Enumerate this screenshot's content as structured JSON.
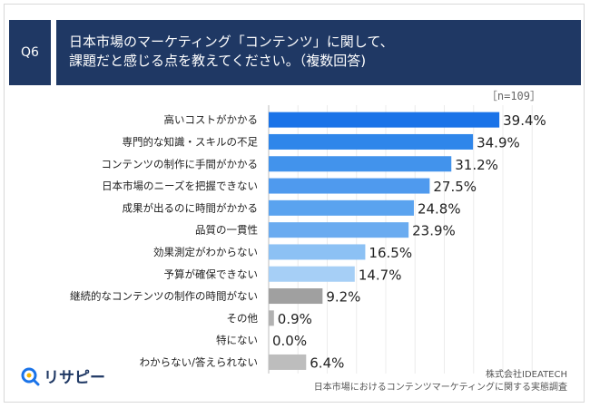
{
  "header": {
    "question_id": "Q6",
    "title_line1": "日本市場のマーケティング「コンテンツ」に関して、",
    "title_line2": "課題だと感じる点を教えてください。（複数回答)"
  },
  "sample_note": "［n=109］",
  "footer": {
    "company": "株式会社IDEATECH",
    "survey": "日本市場におけるコンテンツマーケティングに関する実態調査"
  },
  "logo": {
    "text": "リサピー"
  },
  "chart_data": {
    "type": "bar",
    "orientation": "horizontal",
    "categories": [
      "高いコストがかかる",
      "専門的な知識・スキルの不足",
      "コンテンツの制作に手間がかかる",
      "日本市場のニーズを把握できない",
      "成果が出るのに時間がかかる",
      "品質の一貫性",
      "効果測定がわからない",
      "予算が確保できない",
      "継続的なコンテンツの制作の時間がない",
      "その他",
      "特にない",
      "わからない/答えられない"
    ],
    "values": [
      39.4,
      34.9,
      31.2,
      27.5,
      24.8,
      23.9,
      16.5,
      14.7,
      9.2,
      0.9,
      0.0,
      6.4
    ],
    "value_labels": [
      "39.4%",
      "34.9%",
      "31.2%",
      "27.5%",
      "24.8%",
      "23.9%",
      "16.5%",
      "14.7%",
      "9.2%",
      "0.9%",
      "0.0%",
      "6.4%"
    ],
    "colors": [
      "#1a73e8",
      "#2f86ea",
      "#4293ec",
      "#4f9aee",
      "#5aa3ef",
      "#6aabf0",
      "#8cc1f4",
      "#a6cff6",
      "#a0a0a0",
      "#b2b2b2",
      "#c4c4c4",
      "#bdbdbd"
    ],
    "xlim": [
      0,
      45
    ],
    "grid": true
  }
}
